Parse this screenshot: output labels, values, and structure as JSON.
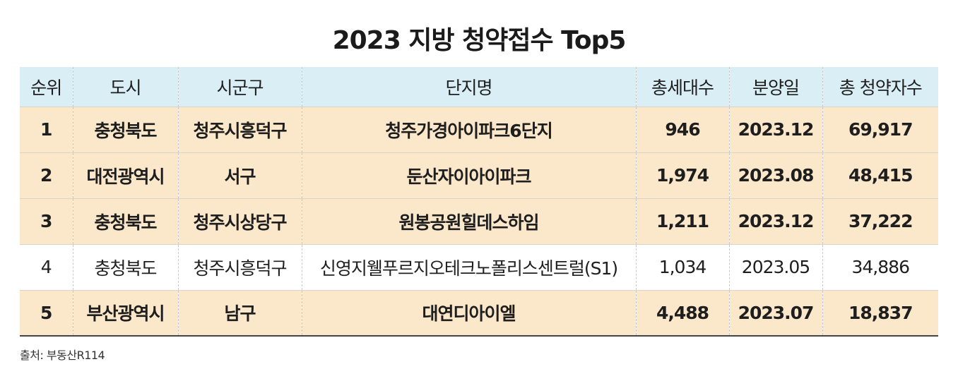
{
  "title": "2023 지방 청약접수 Top5",
  "table": {
    "headers": [
      "순위",
      "도시",
      "시군구",
      "단지명",
      "총세대수",
      "분양일",
      "총 청약자수"
    ],
    "rows": [
      {
        "rank": "1",
        "city": "충청북도",
        "district": "청주시흥덕구",
        "complex": "청주가경아이파크6단지",
        "households": "946",
        "date": "2023.12",
        "applicants": "69,917",
        "highlight": true
      },
      {
        "rank": "2",
        "city": "대전광역시",
        "district": "서구",
        "complex": "둔산자이아이파크",
        "households": "1,974",
        "date": "2023.08",
        "applicants": "48,415",
        "highlight": true
      },
      {
        "rank": "3",
        "city": "충청북도",
        "district": "청주시상당구",
        "complex": "원봉공원힐데스하임",
        "households": "1,211",
        "date": "2023.12",
        "applicants": "37,222",
        "highlight": true
      },
      {
        "rank": "4",
        "city": "충청북도",
        "district": "청주시흥덕구",
        "complex": "신영지웰푸르지오테크노폴리스센트럴(S1)",
        "households": "1,034",
        "date": "2023.05",
        "applicants": "34,886",
        "highlight": false
      },
      {
        "rank": "5",
        "city": "부산광역시",
        "district": "남구",
        "complex": "대연디아이엘",
        "households": "4,488",
        "date": "2023.07",
        "applicants": "18,837",
        "highlight": true
      }
    ]
  },
  "source": "출처: 부동산R114",
  "colors": {
    "header_bg": "#daeef6",
    "highlight_row_bg": "#fbe8cb",
    "plain_row_bg": "#ffffff"
  }
}
